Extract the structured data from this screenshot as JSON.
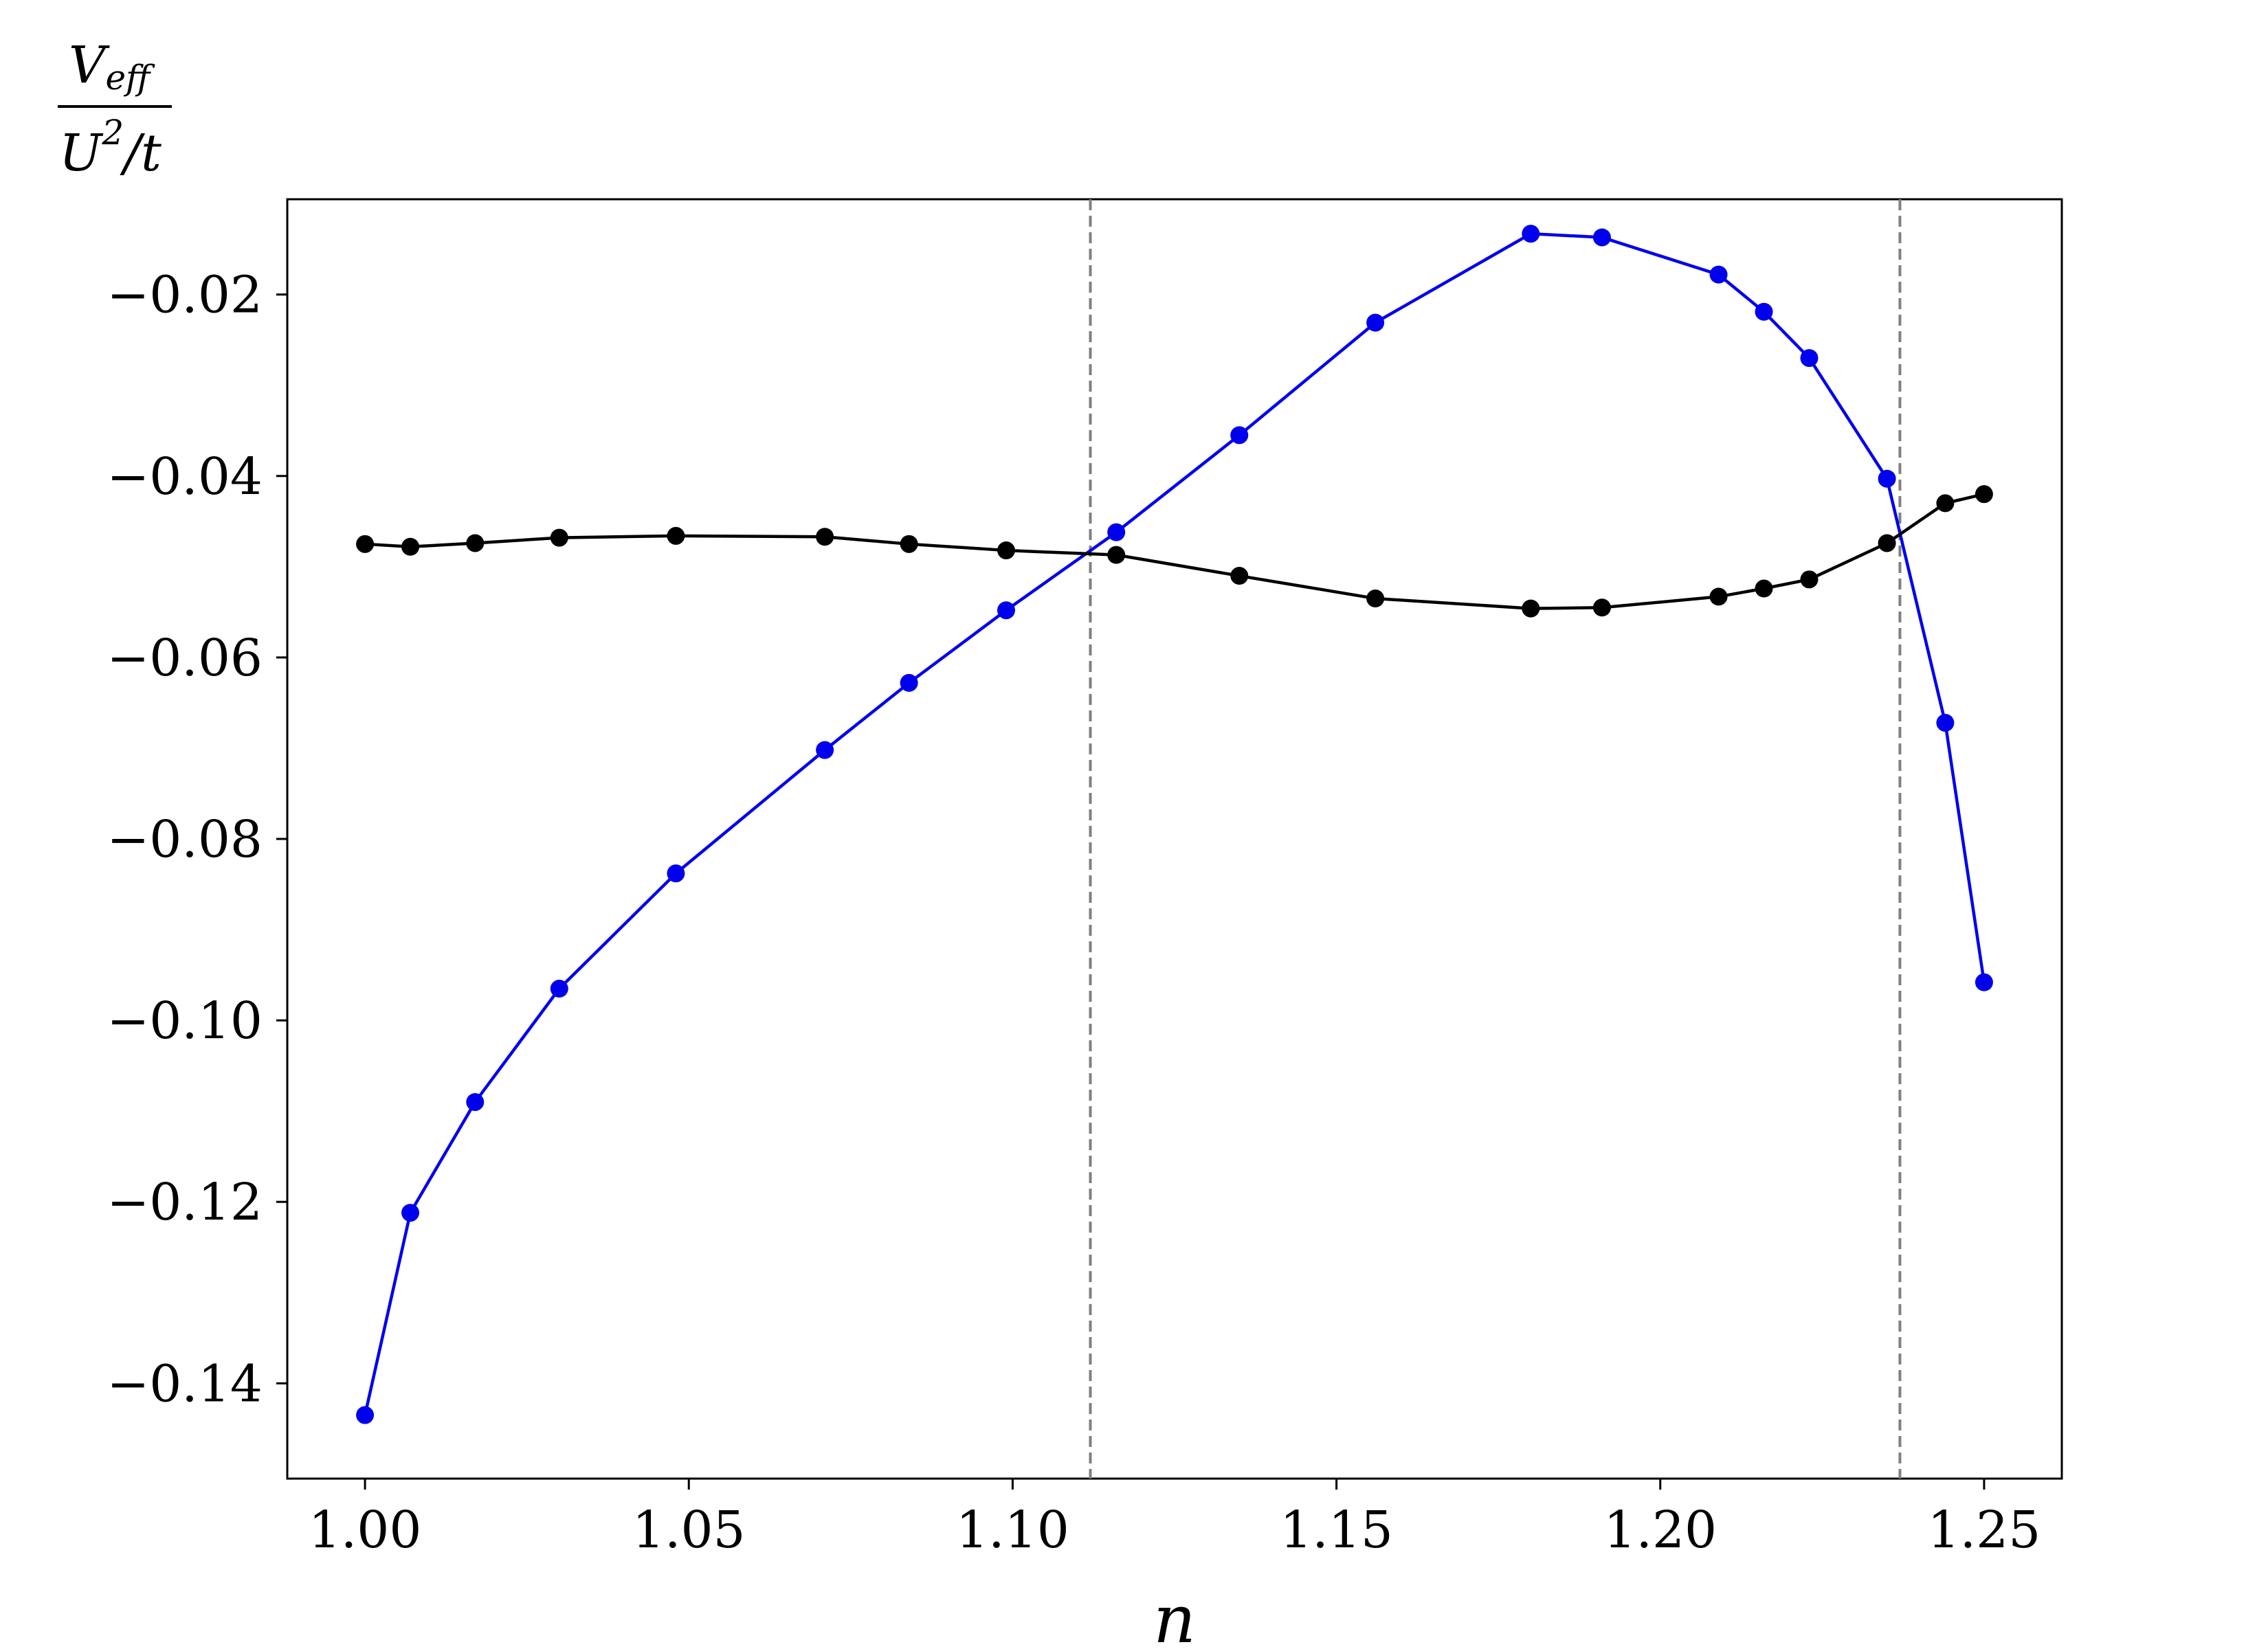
{
  "chart_data": {
    "type": "line",
    "title": "",
    "xlabel": "n",
    "ylabel": {
      "numerator_main": "V",
      "numerator_sub": "eff",
      "denominator_main": "U",
      "denominator_sup": "2",
      "denominator_rest": "/t"
    },
    "xlim": [
      0.988,
      1.262
    ],
    "ylim": [
      -0.1505,
      -0.0095
    ],
    "xticks": [
      1.0,
      1.05,
      1.1,
      1.15,
      1.2,
      1.25
    ],
    "xtick_labels": [
      "1.00",
      "1.05",
      "1.10",
      "1.15",
      "1.20",
      "1.25"
    ],
    "yticks": [
      -0.14,
      -0.12,
      -0.1,
      -0.08,
      -0.06,
      -0.04,
      -0.02
    ],
    "ytick_labels": [
      "−0.14",
      "−0.12",
      "−0.10",
      "−0.08",
      "−0.06",
      "−0.04",
      "−0.02"
    ],
    "grid": false,
    "vlines": [
      {
        "x": 1.112,
        "style": "dashed",
        "color": "#808080"
      },
      {
        "x": 1.237,
        "style": "dashed",
        "color": "#808080"
      }
    ],
    "series": [
      {
        "color": "#0000ee",
        "marker": "circle",
        "x": [
          1.0,
          1.007,
          1.017,
          1.03,
          1.048,
          1.071,
          1.084,
          1.099,
          1.116,
          1.135,
          1.156,
          1.18,
          1.191,
          1.209,
          1.216,
          1.223,
          1.235,
          1.244,
          1.25
        ],
        "y": [
          -0.1435,
          -0.1212,
          -0.109,
          -0.0965,
          -0.0838,
          -0.0702,
          -0.0628,
          -0.0548,
          -0.0462,
          -0.0355,
          -0.0231,
          -0.0133,
          -0.0137,
          -0.0178,
          -0.0219,
          -0.027,
          -0.0403,
          -0.0672,
          -0.0958
        ]
      },
      {
        "color": "#000000",
        "marker": "circle",
        "x": [
          1.0,
          1.007,
          1.017,
          1.03,
          1.048,
          1.071,
          1.084,
          1.099,
          1.116,
          1.135,
          1.156,
          1.18,
          1.191,
          1.209,
          1.216,
          1.223,
          1.235,
          1.244,
          1.25
        ],
        "y": [
          -0.0475,
          -0.0478,
          -0.0474,
          -0.0468,
          -0.0466,
          -0.0467,
          -0.0475,
          -0.0482,
          -0.0487,
          -0.051,
          -0.0535,
          -0.0546,
          -0.0545,
          -0.0533,
          -0.0524,
          -0.0514,
          -0.0474,
          -0.043,
          -0.042
        ]
      }
    ]
  }
}
